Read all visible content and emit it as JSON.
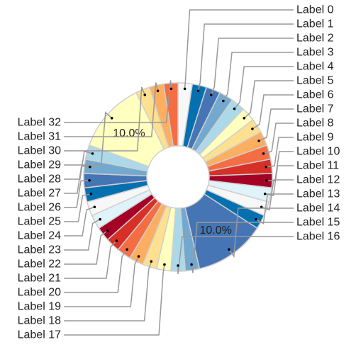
{
  "chart_data": {
    "type": "pie",
    "title": "",
    "donut": true,
    "slices": [
      {
        "label": "Label 0",
        "value": 2.0,
        "color": "#f7f7f7",
        "pct_label": ""
      },
      {
        "label": "Label 1",
        "value": 2.0,
        "color": "#0570b0",
        "pct_label": ""
      },
      {
        "label": "Label 2",
        "value": 2.0,
        "color": "#4575b4",
        "pct_label": ""
      },
      {
        "label": "Label 3",
        "value": 2.0,
        "color": "#74a9cf",
        "pct_label": ""
      },
      {
        "label": "Label 4",
        "value": 2.0,
        "color": "#abd9e9",
        "pct_label": ""
      },
      {
        "label": "Label 5",
        "value": 2.0,
        "color": "#ffffbf",
        "pct_label": ""
      },
      {
        "label": "Label 6",
        "value": 2.0,
        "color": "#fee090",
        "pct_label": ""
      },
      {
        "label": "Label 7",
        "value": 2.0,
        "color": "#fdae61",
        "pct_label": ""
      },
      {
        "label": "Label 8",
        "value": 2.0,
        "color": "#f46d43",
        "pct_label": ""
      },
      {
        "label": "Label 9",
        "value": 2.0,
        "color": "#d73027",
        "pct_label": ""
      },
      {
        "label": "Label 10",
        "value": 2.0,
        "color": "#a50026",
        "pct_label": ""
      },
      {
        "label": "Label 11",
        "value": 2.0,
        "color": "#e0f3f8",
        "pct_label": ""
      },
      {
        "label": "Label 12",
        "value": 2.0,
        "color": "#f7f7f7",
        "pct_label": ""
      },
      {
        "label": "Label 13",
        "value": 2.0,
        "color": "#0570b0",
        "pct_label": ""
      },
      {
        "label": "Label 14",
        "value": 10.0,
        "color": "#4575b4",
        "pct_label": "10.0%"
      },
      {
        "label": "Label 15",
        "value": 2.0,
        "color": "#74a9cf",
        "pct_label": ""
      },
      {
        "label": "Label 16",
        "value": 2.0,
        "color": "#abd9e9",
        "pct_label": ""
      },
      {
        "label": "Label 17",
        "value": 2.0,
        "color": "#ffffbf",
        "pct_label": ""
      },
      {
        "label": "Label 18",
        "value": 2.0,
        "color": "#fee090",
        "pct_label": ""
      },
      {
        "label": "Label 19",
        "value": 2.0,
        "color": "#fdae61",
        "pct_label": ""
      },
      {
        "label": "Label 20",
        "value": 2.0,
        "color": "#f46d43",
        "pct_label": ""
      },
      {
        "label": "Label 21",
        "value": 2.0,
        "color": "#d73027",
        "pct_label": ""
      },
      {
        "label": "Label 22",
        "value": 2.0,
        "color": "#a50026",
        "pct_label": ""
      },
      {
        "label": "Label 23",
        "value": 2.0,
        "color": "#e0f3f8",
        "pct_label": ""
      },
      {
        "label": "Label 24",
        "value": 2.0,
        "color": "#f7f7f7",
        "pct_label": ""
      },
      {
        "label": "Label 25",
        "value": 2.0,
        "color": "#0570b0",
        "pct_label": ""
      },
      {
        "label": "Label 26",
        "value": 2.0,
        "color": "#4575b4",
        "pct_label": ""
      },
      {
        "label": "Label 27",
        "value": 2.0,
        "color": "#74a9cf",
        "pct_label": ""
      },
      {
        "label": "Label 28",
        "value": 2.0,
        "color": "#abd9e9",
        "pct_label": ""
      },
      {
        "label": "Label 29",
        "value": 10.0,
        "color": "#ffffbf",
        "pct_label": "10.0%"
      },
      {
        "label": "Label 30",
        "value": 2.0,
        "color": "#fee090",
        "pct_label": ""
      },
      {
        "label": "Label 31",
        "value": 2.0,
        "color": "#fdae61",
        "pct_label": ""
      },
      {
        "label": "Label 32",
        "value": 2.0,
        "color": "#f46d43",
        "pct_label": ""
      }
    ],
    "legend": "none"
  }
}
